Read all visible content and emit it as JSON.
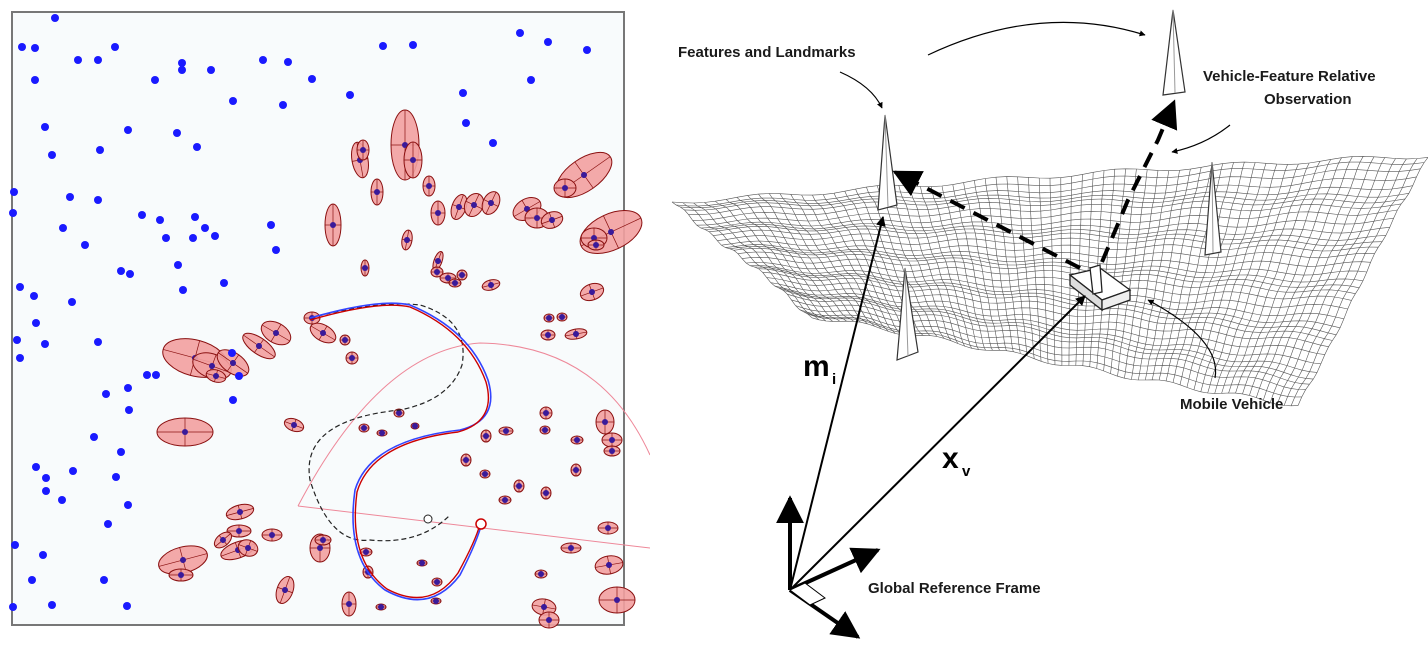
{
  "colors": {
    "landmark": "#1a1aff",
    "ellipse_fill": "#f2a0a0",
    "ellipse_stroke": "#8a1010",
    "true_path": "#3344ff",
    "est_path": "#cc0000",
    "odom_path": "#222222",
    "sensor_range": "#ee8899",
    "mesh": "#555555"
  },
  "right_labels": {
    "features": "Features and Landmarks",
    "vehicle_feature_1": "Vehicle-Feature Relative",
    "vehicle_feature_2": "Observation",
    "mobile_vehicle": "Mobile Vehicle",
    "global_frame": "Global Reference Frame",
    "m_symbol": "m",
    "m_sub": "i",
    "x_symbol": "x",
    "x_sub": "v"
  }
}
